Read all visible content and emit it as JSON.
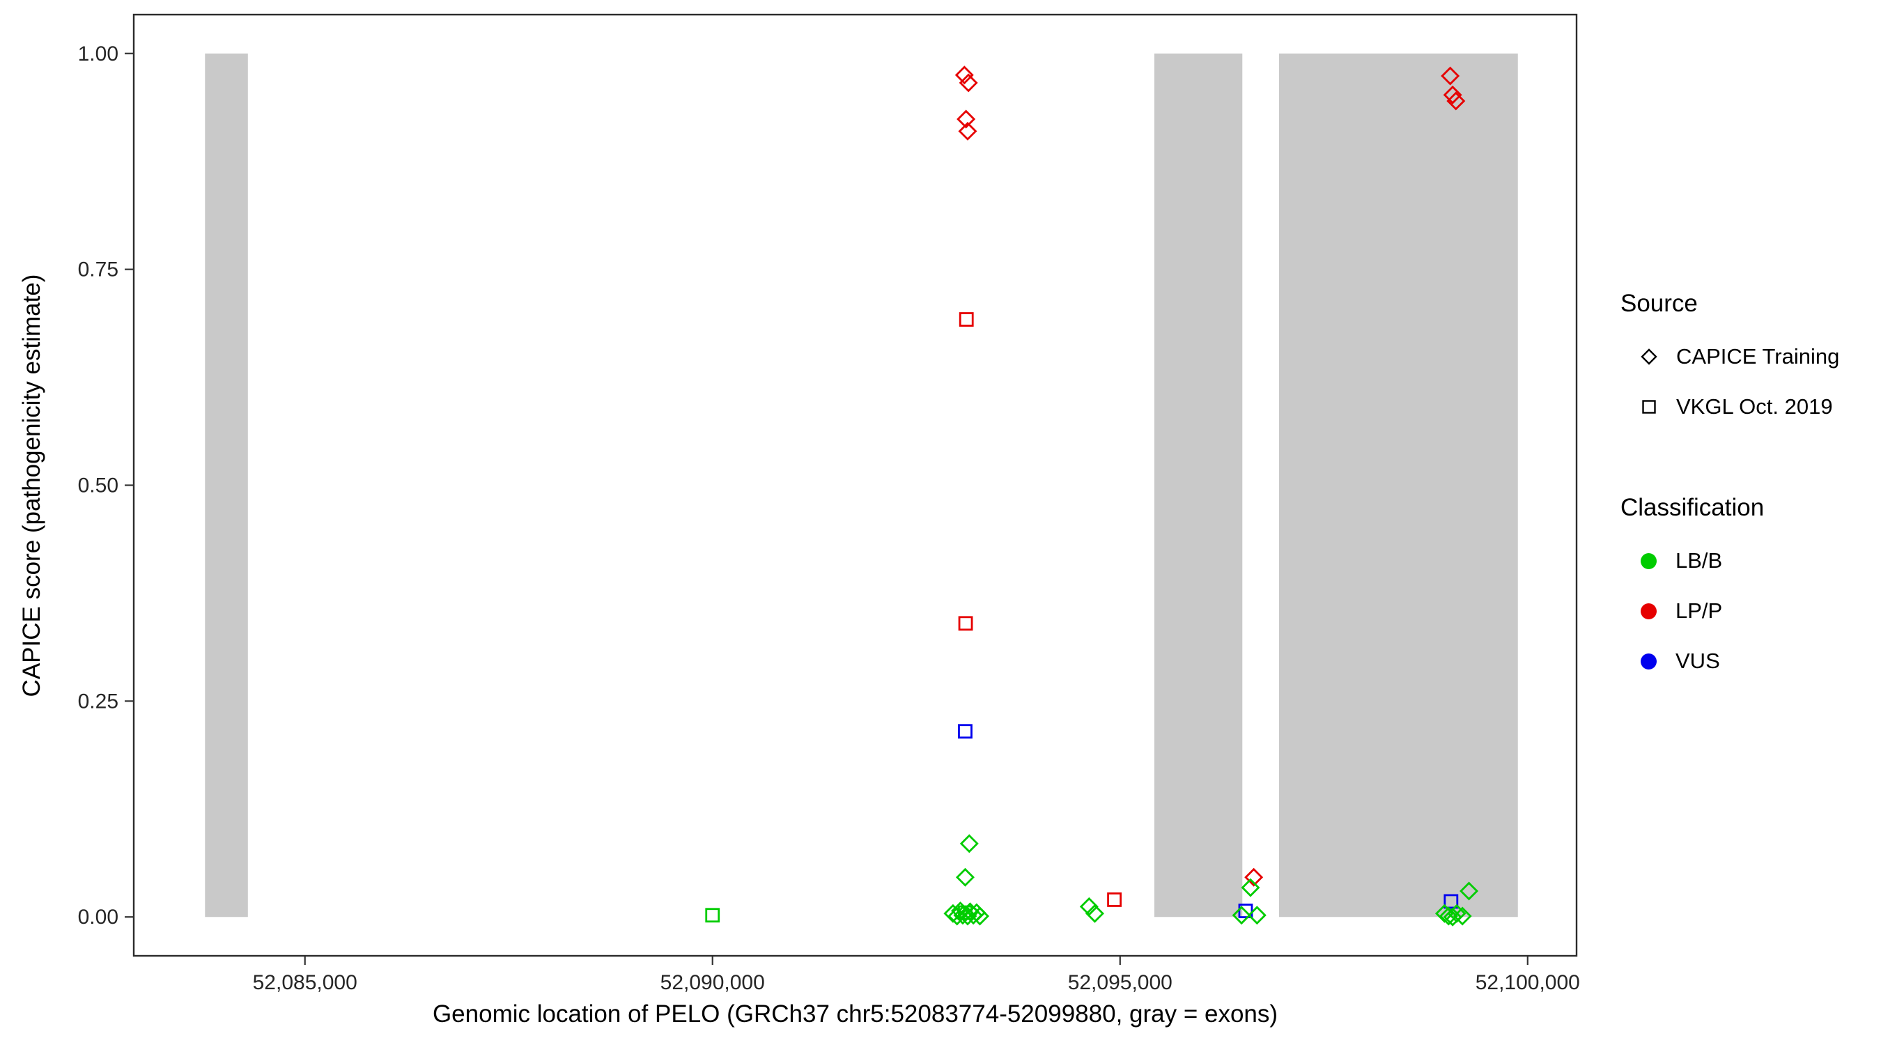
{
  "chart_data": {
    "type": "scatter",
    "title": "",
    "xlabel": "Genomic location of PELO (GRCh37 chr5:52083774-52099880, gray = exons)",
    "ylabel": "CAPICE score (pathogenicity estimate)",
    "xlim": [
      52082900,
      52100600
    ],
    "ylim": [
      -0.045,
      1.045
    ],
    "grid": false,
    "legend_position": "right",
    "x_ticks": [
      {
        "value": 52085000,
        "label": "52,085,000"
      },
      {
        "value": 52090000,
        "label": "52,090,000"
      },
      {
        "value": 52095000,
        "label": "52,095,000"
      },
      {
        "value": 52100000,
        "label": "52,100,000"
      }
    ],
    "y_ticks": [
      {
        "value": 0.0,
        "label": "0.00"
      },
      {
        "value": 0.25,
        "label": "0.25"
      },
      {
        "value": 0.5,
        "label": "0.50"
      },
      {
        "value": 0.75,
        "label": "0.75"
      },
      {
        "value": 1.0,
        "label": "1.00"
      }
    ],
    "exon_color": "#C9C9C9",
    "exons": [
      [
        52083774,
        52084300
      ],
      [
        52095420,
        52096500
      ],
      [
        52096950,
        52099880
      ]
    ],
    "colors": {
      "LB/B": "#00CC00",
      "LP/P": "#E60000",
      "VUS": "#0000EE"
    },
    "shape_by_source": {
      "CAPICE Training": "diamond",
      "VKGL Oct. 2019": "square"
    },
    "points": [
      {
        "x": 52090000,
        "y": 0.002,
        "source": "VKGL Oct. 2019",
        "classification": "LB/B"
      },
      {
        "x": 52093090,
        "y": 0.975,
        "source": "CAPICE Training",
        "classification": "LP/P"
      },
      {
        "x": 52093140,
        "y": 0.966,
        "source": "CAPICE Training",
        "classification": "LP/P"
      },
      {
        "x": 52093110,
        "y": 0.924,
        "source": "CAPICE Training",
        "classification": "LP/P"
      },
      {
        "x": 52093130,
        "y": 0.91,
        "source": "CAPICE Training",
        "classification": "LP/P"
      },
      {
        "x": 52093115,
        "y": 0.692,
        "source": "VKGL Oct. 2019",
        "classification": "LP/P"
      },
      {
        "x": 52093105,
        "y": 0.34,
        "source": "VKGL Oct. 2019",
        "classification": "LP/P"
      },
      {
        "x": 52093100,
        "y": 0.215,
        "source": "VKGL Oct. 2019",
        "classification": "VUS"
      },
      {
        "x": 52093150,
        "y": 0.085,
        "source": "CAPICE Training",
        "classification": "LB/B"
      },
      {
        "x": 52093100,
        "y": 0.046,
        "source": "CAPICE Training",
        "classification": "LB/B"
      },
      {
        "x": 52092950,
        "y": 0.004,
        "source": "CAPICE Training",
        "classification": "LB/B"
      },
      {
        "x": 52093000,
        "y": 0.001,
        "source": "CAPICE Training",
        "classification": "LB/B"
      },
      {
        "x": 52093040,
        "y": 0.007,
        "source": "CAPICE Training",
        "classification": "LB/B"
      },
      {
        "x": 52093070,
        "y": 0.002,
        "source": "CAPICE Training",
        "classification": "LB/B"
      },
      {
        "x": 52093100,
        "y": 0.005,
        "source": "VKGL Oct. 2019",
        "classification": "LB/B"
      },
      {
        "x": 52093130,
        "y": 0.001,
        "source": "CAPICE Training",
        "classification": "LB/B"
      },
      {
        "x": 52093160,
        "y": 0.006,
        "source": "CAPICE Training",
        "classification": "LB/B"
      },
      {
        "x": 52093200,
        "y": 0.002,
        "source": "CAPICE Training",
        "classification": "LB/B"
      },
      {
        "x": 52093240,
        "y": 0.005,
        "source": "CAPICE Training",
        "classification": "LB/B"
      },
      {
        "x": 52093280,
        "y": 0.001,
        "source": "CAPICE Training",
        "classification": "LB/B"
      },
      {
        "x": 52094620,
        "y": 0.012,
        "source": "CAPICE Training",
        "classification": "LB/B"
      },
      {
        "x": 52094690,
        "y": 0.004,
        "source": "CAPICE Training",
        "classification": "LB/B"
      },
      {
        "x": 52094930,
        "y": 0.02,
        "source": "VKGL Oct. 2019",
        "classification": "LP/P"
      },
      {
        "x": 52096640,
        "y": 0.046,
        "source": "CAPICE Training",
        "classification": "LP/P"
      },
      {
        "x": 52096600,
        "y": 0.034,
        "source": "CAPICE Training",
        "classification": "LB/B"
      },
      {
        "x": 52096540,
        "y": 0.007,
        "source": "VKGL Oct. 2019",
        "classification": "VUS"
      },
      {
        "x": 52096490,
        "y": 0.002,
        "source": "CAPICE Training",
        "classification": "LB/B"
      },
      {
        "x": 52096680,
        "y": 0.002,
        "source": "CAPICE Training",
        "classification": "LB/B"
      },
      {
        "x": 52099050,
        "y": 0.974,
        "source": "CAPICE Training",
        "classification": "LP/P"
      },
      {
        "x": 52099080,
        "y": 0.952,
        "source": "CAPICE Training",
        "classification": "LP/P"
      },
      {
        "x": 52099120,
        "y": 0.945,
        "source": "CAPICE Training",
        "classification": "LP/P"
      },
      {
        "x": 52099280,
        "y": 0.03,
        "source": "CAPICE Training",
        "classification": "LB/B"
      },
      {
        "x": 52099060,
        "y": 0.018,
        "source": "VKGL Oct. 2019",
        "classification": "VUS"
      },
      {
        "x": 52098980,
        "y": 0.004,
        "source": "CAPICE Training",
        "classification": "LB/B"
      },
      {
        "x": 52099030,
        "y": 0.001,
        "source": "CAPICE Training",
        "classification": "LB/B"
      },
      {
        "x": 52099080,
        "y": 0.0,
        "source": "CAPICE Training",
        "classification": "LB/B"
      },
      {
        "x": 52099130,
        "y": 0.004,
        "source": "CAPICE Training",
        "classification": "LB/B"
      },
      {
        "x": 52099200,
        "y": 0.001,
        "source": "CAPICE Training",
        "classification": "LB/B"
      }
    ]
  },
  "legend": {
    "source": {
      "title": "Source",
      "items": [
        {
          "label": "CAPICE Training",
          "shape": "diamond"
        },
        {
          "label": "VKGL Oct. 2019",
          "shape": "square"
        }
      ]
    },
    "classification": {
      "title": "Classification",
      "items": [
        {
          "label": "LB/B",
          "color": "#00CC00"
        },
        {
          "label": "LP/P",
          "color": "#E60000"
        },
        {
          "label": "VUS",
          "color": "#0000EE"
        }
      ]
    }
  }
}
